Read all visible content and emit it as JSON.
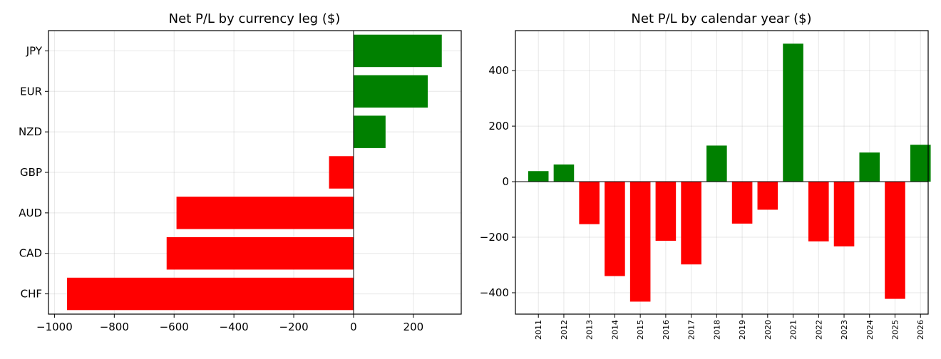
{
  "colors": {
    "positive": "#008000",
    "negative": "#ff0000"
  },
  "chart_data": [
    {
      "type": "bar",
      "orientation": "horizontal",
      "title": "Net P/L by currency leg ($)",
      "categories": [
        "JPY",
        "EUR",
        "NZD",
        "GBP",
        "AUD",
        "CAD",
        "CHF"
      ],
      "values": [
        295,
        248,
        107,
        -82,
        -592,
        -625,
        -958
      ],
      "xlim": [
        -1020,
        360
      ],
      "xticks": [
        -1000,
        -800,
        -600,
        -400,
        -200,
        0,
        200
      ],
      "xtick_labels": [
        "−1000",
        "−800",
        "−600",
        "−400",
        "−200",
        "0",
        "200"
      ],
      "grid": true,
      "zero_line": true
    },
    {
      "type": "bar",
      "orientation": "vertical",
      "title": "Net P/L by calendar year ($)",
      "categories": [
        "2011",
        "2012",
        "2013",
        "2014",
        "2015",
        "2016",
        "2017",
        "2018",
        "2019",
        "2020",
        "2021",
        "2022",
        "2023",
        "2024",
        "2025",
        "2026"
      ],
      "values": [
        38,
        62,
        -153,
        -340,
        -432,
        -213,
        -298,
        130,
        -151,
        -101,
        497,
        -215,
        -233,
        105,
        -422,
        133
      ],
      "ylim": [
        -477,
        544
      ],
      "yticks": [
        -400,
        -200,
        0,
        200,
        400
      ],
      "ytick_labels": [
        "−400",
        "−200",
        "0",
        "200",
        "400"
      ],
      "grid": true,
      "zero_line": true
    }
  ]
}
